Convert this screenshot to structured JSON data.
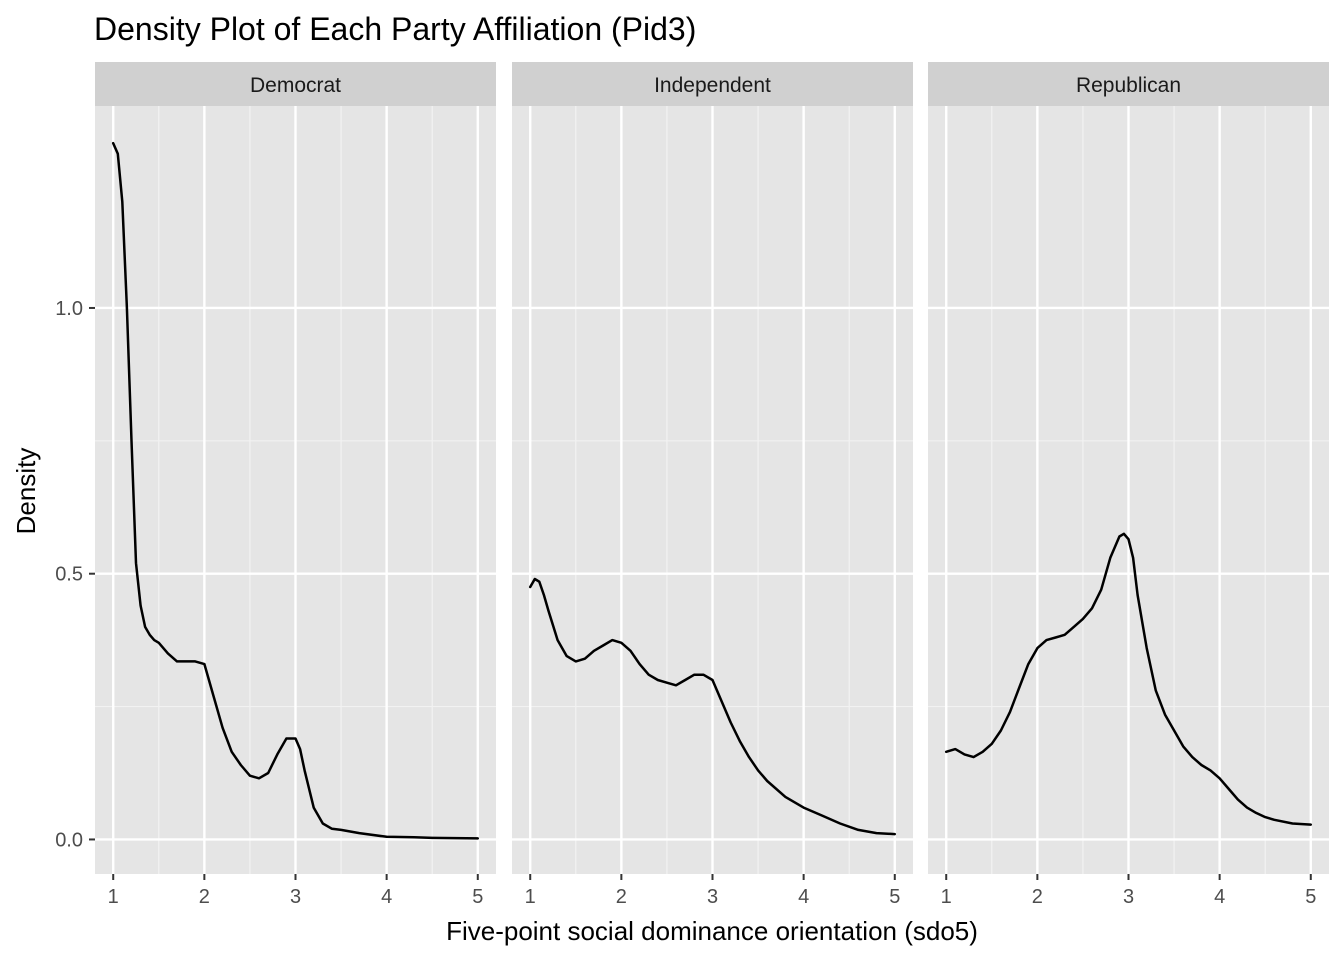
{
  "chart_data": {
    "type": "line",
    "title": "Density Plot of Each Party Affiliation (Pid3)",
    "xlabel": "Five-point social dominance orientation (sdo5)",
    "ylabel": "Density",
    "xlim": [
      0.8,
      5.2
    ],
    "ylim": [
      -0.065,
      1.38
    ],
    "x_ticks": [
      1,
      2,
      3,
      4,
      5
    ],
    "y_ticks": [
      0.0,
      0.5,
      1.0
    ],
    "y_tick_labels": [
      "0.0",
      "0.5",
      "1.0"
    ],
    "grid": true,
    "line_color": "#000000",
    "panel_background": "#e5e5e5",
    "strip_background": "#d0d0d0",
    "panels": [
      {
        "name": "Democrat",
        "x": [
          1.0,
          1.05,
          1.1,
          1.15,
          1.2,
          1.25,
          1.3,
          1.35,
          1.4,
          1.45,
          1.5,
          1.6,
          1.7,
          1.8,
          1.9,
          2.0,
          2.1,
          2.2,
          2.3,
          2.4,
          2.5,
          2.6,
          2.7,
          2.8,
          2.9,
          3.0,
          3.05,
          3.1,
          3.2,
          3.3,
          3.4,
          3.5,
          3.7,
          4.0,
          4.3,
          4.5,
          5.0
        ],
        "y": [
          1.31,
          1.29,
          1.2,
          1.0,
          0.75,
          0.52,
          0.44,
          0.4,
          0.385,
          0.375,
          0.37,
          0.35,
          0.335,
          0.335,
          0.335,
          0.33,
          0.27,
          0.21,
          0.165,
          0.14,
          0.12,
          0.115,
          0.125,
          0.16,
          0.19,
          0.19,
          0.17,
          0.13,
          0.06,
          0.03,
          0.02,
          0.018,
          0.012,
          0.005,
          0.004,
          0.003,
          0.002
        ]
      },
      {
        "name": "Independent",
        "x": [
          1.0,
          1.05,
          1.1,
          1.15,
          1.2,
          1.3,
          1.4,
          1.5,
          1.6,
          1.7,
          1.8,
          1.9,
          2.0,
          2.1,
          2.2,
          2.3,
          2.4,
          2.5,
          2.6,
          2.7,
          2.8,
          2.9,
          3.0,
          3.1,
          3.2,
          3.3,
          3.4,
          3.5,
          3.6,
          3.8,
          4.0,
          4.2,
          4.4,
          4.6,
          4.8,
          5.0
        ],
        "y": [
          0.475,
          0.49,
          0.485,
          0.46,
          0.43,
          0.375,
          0.345,
          0.335,
          0.34,
          0.355,
          0.365,
          0.375,
          0.37,
          0.355,
          0.33,
          0.31,
          0.3,
          0.295,
          0.29,
          0.3,
          0.31,
          0.31,
          0.3,
          0.26,
          0.22,
          0.185,
          0.155,
          0.13,
          0.11,
          0.08,
          0.06,
          0.045,
          0.03,
          0.018,
          0.012,
          0.01
        ]
      },
      {
        "name": "Republican",
        "x": [
          1.0,
          1.1,
          1.2,
          1.3,
          1.4,
          1.5,
          1.6,
          1.7,
          1.8,
          1.9,
          2.0,
          2.1,
          2.2,
          2.3,
          2.4,
          2.5,
          2.6,
          2.7,
          2.8,
          2.9,
          2.95,
          3.0,
          3.05,
          3.1,
          3.2,
          3.3,
          3.4,
          3.5,
          3.6,
          3.7,
          3.8,
          3.9,
          4.0,
          4.1,
          4.2,
          4.3,
          4.4,
          4.5,
          4.6,
          4.8,
          5.0
        ],
        "y": [
          0.165,
          0.17,
          0.16,
          0.155,
          0.165,
          0.18,
          0.205,
          0.24,
          0.285,
          0.33,
          0.36,
          0.375,
          0.38,
          0.385,
          0.4,
          0.415,
          0.435,
          0.47,
          0.53,
          0.57,
          0.575,
          0.565,
          0.53,
          0.46,
          0.36,
          0.28,
          0.235,
          0.205,
          0.175,
          0.155,
          0.14,
          0.13,
          0.115,
          0.095,
          0.075,
          0.06,
          0.05,
          0.042,
          0.037,
          0.03,
          0.028
        ]
      }
    ]
  }
}
